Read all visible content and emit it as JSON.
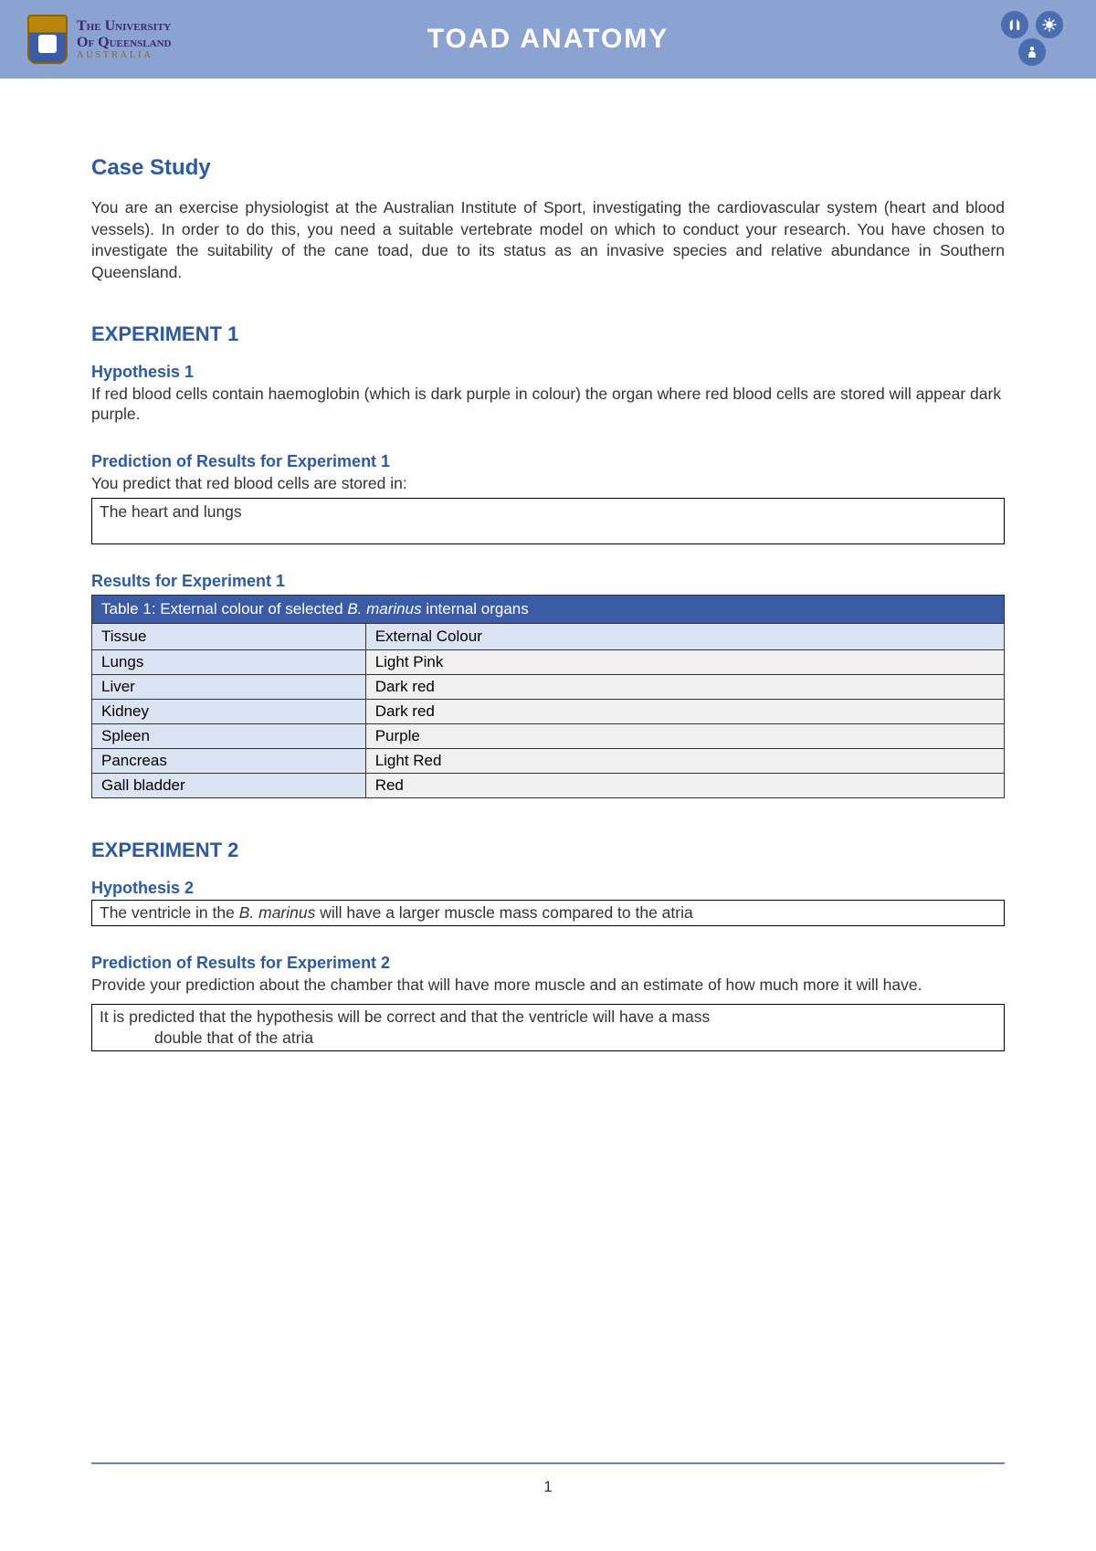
{
  "header": {
    "title": "TOAD ANATOMY",
    "logo": {
      "line1": "The University",
      "line2": "Of Queensland",
      "line3": "AUSTRALIA"
    }
  },
  "colors": {
    "band": "#8aa3d0",
    "heading": "#2d5aa0",
    "table_caption_bg": "#3b5ba5",
    "table_header_bg": "#dbe4f2",
    "table_cell_bg": "#f0f0f0",
    "footer_rule": "#6a86bf",
    "icon_circle": "#4a6db0"
  },
  "case_study": {
    "title": "Case Study",
    "text": "You are an exercise physiologist at the Australian Institute of Sport, investigating the cardiovascular system (heart and blood vessels). In order to do this, you need a suitable vertebrate model on which to conduct your research. You have chosen to investigate the suitability of the cane toad, due to its status as an invasive species and relative abundance in Southern Queensland."
  },
  "exp1": {
    "title": "EXPERIMENT 1",
    "hyp_title": "Hypothesis 1",
    "hyp_text": "If red blood cells contain haemoglobin (which is dark purple in colour) the organ where red blood cells are stored will appear dark purple.",
    "pred_title": "Prediction of Results for Experiment 1",
    "pred_text": "You predict that red blood cells are stored in:",
    "pred_answer": "The heart and lungs",
    "results_title": "Results for Experiment 1",
    "table": {
      "caption_pre": "Table 1: External colour of selected ",
      "caption_em": "B. marinus",
      "caption_post": " internal organs",
      "columns": [
        "Tissue",
        "External Colour"
      ],
      "rows": [
        [
          "Lungs",
          "Light Pink"
        ],
        [
          "Liver",
          "Dark red"
        ],
        [
          "Kidney",
          "Dark red"
        ],
        [
          "Spleen",
          "Purple"
        ],
        [
          "Pancreas",
          "Light Red"
        ],
        [
          "Gall bladder",
          "Red"
        ]
      ]
    }
  },
  "exp2": {
    "title": "EXPERIMENT 2",
    "hyp_title": "Hypothesis 2",
    "hyp_box_pre": "The ventricle in the ",
    "hyp_box_em": "B. marinus",
    "hyp_box_post": "  will have a larger muscle mass compared to the atria",
    "pred_title": "Prediction of Results for Experiment 2",
    "pred_text": "Provide your prediction about the chamber that will have more muscle and an estimate of how much more it will have.",
    "pred_answer_l1": "It is predicted that the hypothesis will be correct and that the ventricle will have a mass",
    "pred_answer_l2": "double that of the atria"
  },
  "page_number": "1"
}
